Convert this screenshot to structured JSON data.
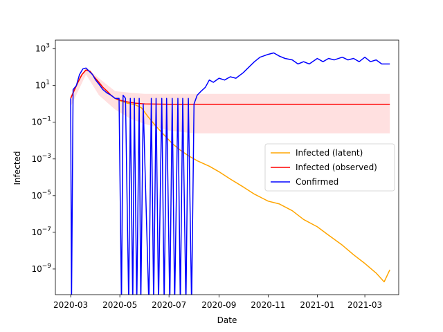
{
  "chart_data": {
    "type": "line",
    "title": "",
    "xlabel": "Date",
    "ylabel": "Infected",
    "yscale": "log",
    "ylim": [
      4e-11,
      3000
    ],
    "xlim": [
      "2020-02-11",
      "2021-04-12"
    ],
    "grid": false,
    "legend_position": "center-right",
    "x_ticks": [
      "2020-03",
      "2020-05",
      "2020-07",
      "2020-09",
      "2020-11",
      "2021-01",
      "2021-03"
    ],
    "y_ticks": [
      {
        "value": 1e-09,
        "base": "10",
        "exp": "−9"
      },
      {
        "value": 1e-07,
        "base": "10",
        "exp": "−7"
      },
      {
        "value": 1e-05,
        "base": "10",
        "exp": "−5"
      },
      {
        "value": 0.001,
        "base": "10",
        "exp": "−3"
      },
      {
        "value": 0.1,
        "base": "10",
        "exp": "−1"
      },
      {
        "value": 10,
        "base": "10",
        "exp": "1"
      },
      {
        "value": 1000,
        "base": "10",
        "exp": "3"
      }
    ],
    "series": [
      {
        "name": "Infected (latent)",
        "color": "#ffa500",
        "points": [
          [
            "2020-03-01",
            2
          ],
          [
            "2020-03-05",
            5
          ],
          [
            "2020-03-10",
            15
          ],
          [
            "2020-03-15",
            40
          ],
          [
            "2020-03-20",
            70
          ],
          [
            "2020-03-25",
            60
          ],
          [
            "2020-03-30",
            30
          ],
          [
            "2020-04-05",
            15
          ],
          [
            "2020-04-10",
            8
          ],
          [
            "2020-04-15",
            5
          ],
          [
            "2020-04-20",
            3
          ],
          [
            "2020-04-25",
            2
          ],
          [
            "2020-05-01",
            1.5
          ],
          [
            "2020-05-10",
            1.1
          ],
          [
            "2020-05-20",
            0.9
          ],
          [
            "2020-05-28",
            0.6
          ],
          [
            "2020-06-05",
            0.2
          ],
          [
            "2020-06-15",
            0.06
          ],
          [
            "2020-06-25",
            0.02
          ],
          [
            "2020-07-05",
            0.007
          ],
          [
            "2020-07-15",
            0.003
          ],
          [
            "2020-07-25",
            0.0015
          ],
          [
            "2020-08-05",
            0.0008
          ],
          [
            "2020-08-20",
            0.0004
          ],
          [
            "2020-09-01",
            0.0002
          ],
          [
            "2020-09-15",
            8e-05
          ],
          [
            "2020-10-01",
            3e-05
          ],
          [
            "2020-10-15",
            1.2e-05
          ],
          [
            "2020-11-01",
            5e-06
          ],
          [
            "2020-11-15",
            3.5e-06
          ],
          [
            "2020-12-01",
            1.5e-06
          ],
          [
            "2020-12-15",
            5e-07
          ],
          [
            "2021-01-01",
            2e-07
          ],
          [
            "2021-01-15",
            7e-08
          ],
          [
            "2021-02-01",
            2e-08
          ],
          [
            "2021-02-15",
            6e-09
          ],
          [
            "2021-03-01",
            2e-09
          ],
          [
            "2021-03-15",
            6e-10
          ],
          [
            "2021-03-25",
            2e-10
          ],
          [
            "2021-04-01",
            9e-10
          ]
        ]
      },
      {
        "name": "Infected (observed)",
        "color": "#ff0000",
        "points": [
          [
            "2020-03-01",
            2
          ],
          [
            "2020-03-05",
            5
          ],
          [
            "2020-03-10",
            15
          ],
          [
            "2020-03-15",
            40
          ],
          [
            "2020-03-20",
            70
          ],
          [
            "2020-03-25",
            60
          ],
          [
            "2020-03-30",
            30
          ],
          [
            "2020-04-05",
            15
          ],
          [
            "2020-04-10",
            8
          ],
          [
            "2020-04-15",
            5
          ],
          [
            "2020-04-20",
            3
          ],
          [
            "2020-04-25",
            2
          ],
          [
            "2020-05-01",
            1.6
          ],
          [
            "2020-05-10",
            1.3
          ],
          [
            "2020-05-20",
            1.1
          ],
          [
            "2020-06-01",
            1.0
          ],
          [
            "2020-07-01",
            0.95
          ],
          [
            "2020-08-01",
            0.95
          ],
          [
            "2020-09-01",
            0.95
          ],
          [
            "2020-10-01",
            0.95
          ],
          [
            "2020-11-01",
            0.95
          ],
          [
            "2020-12-01",
            0.95
          ],
          [
            "2021-01-01",
            0.95
          ],
          [
            "2021-02-01",
            0.95
          ],
          [
            "2021-03-01",
            0.95
          ],
          [
            "2021-04-01",
            0.95
          ]
        ]
      },
      {
        "name": "Confirmed",
        "color": "#0000ff",
        "points": [
          [
            "2020-03-01",
            2
          ],
          [
            "2020-03-02",
            1e-11
          ],
          [
            "2020-03-04",
            6
          ],
          [
            "2020-03-08",
            10
          ],
          [
            "2020-03-12",
            40
          ],
          [
            "2020-03-16",
            80
          ],
          [
            "2020-03-20",
            90
          ],
          [
            "2020-03-24",
            60
          ],
          [
            "2020-03-28",
            40
          ],
          [
            "2020-04-01",
            20
          ],
          [
            "2020-04-05",
            12
          ],
          [
            "2020-04-10",
            6
          ],
          [
            "2020-04-15",
            4
          ],
          [
            "2020-04-20",
            3
          ],
          [
            "2020-04-25",
            2
          ],
          [
            "2020-04-30",
            2
          ],
          [
            "2020-05-03",
            1e-11
          ],
          [
            "2020-05-05",
            3
          ],
          [
            "2020-05-08",
            2
          ],
          [
            "2020-05-12",
            1e-11
          ],
          [
            "2020-05-14",
            2
          ],
          [
            "2020-05-17",
            1e-11
          ],
          [
            "2020-05-19",
            2
          ],
          [
            "2020-05-22",
            1e-11
          ],
          [
            "2020-05-25",
            2
          ],
          [
            "2020-05-27",
            1e-11
          ],
          [
            "2020-05-30",
            1
          ],
          [
            "2020-06-06",
            1e-11
          ],
          [
            "2020-06-09",
            2
          ],
          [
            "2020-06-12",
            1e-11
          ],
          [
            "2020-06-15",
            2
          ],
          [
            "2020-06-18",
            1e-11
          ],
          [
            "2020-06-22",
            2
          ],
          [
            "2020-06-25",
            1e-11
          ],
          [
            "2020-06-28",
            2
          ],
          [
            "2020-07-02",
            1e-11
          ],
          [
            "2020-07-05",
            2
          ],
          [
            "2020-07-08",
            1e-11
          ],
          [
            "2020-07-12",
            2
          ],
          [
            "2020-07-15",
            1e-11
          ],
          [
            "2020-07-18",
            2
          ],
          [
            "2020-07-22",
            1e-11
          ],
          [
            "2020-07-25",
            2
          ],
          [
            "2020-07-29",
            1e-11
          ],
          [
            "2020-08-01",
            1
          ],
          [
            "2020-08-05",
            3
          ],
          [
            "2020-08-10",
            5
          ],
          [
            "2020-08-15",
            8
          ],
          [
            "2020-08-20",
            20
          ],
          [
            "2020-08-25",
            15
          ],
          [
            "2020-09-01",
            25
          ],
          [
            "2020-09-08",
            20
          ],
          [
            "2020-09-15",
            30
          ],
          [
            "2020-09-22",
            25
          ],
          [
            "2020-10-01",
            50
          ],
          [
            "2020-10-08",
            100
          ],
          [
            "2020-10-15",
            200
          ],
          [
            "2020-10-22",
            350
          ],
          [
            "2020-11-01",
            500
          ],
          [
            "2020-11-08",
            600
          ],
          [
            "2020-11-15",
            400
          ],
          [
            "2020-11-22",
            300
          ],
          [
            "2020-12-01",
            250
          ],
          [
            "2020-12-08",
            150
          ],
          [
            "2020-12-15",
            200
          ],
          [
            "2020-12-22",
            150
          ],
          [
            "2021-01-01",
            300
          ],
          [
            "2021-01-08",
            200
          ],
          [
            "2021-01-15",
            300
          ],
          [
            "2021-01-22",
            250
          ],
          [
            "2021-02-01",
            350
          ],
          [
            "2021-02-08",
            250
          ],
          [
            "2021-02-15",
            300
          ],
          [
            "2021-02-22",
            200
          ],
          [
            "2021-03-01",
            350
          ],
          [
            "2021-03-08",
            200
          ],
          [
            "2021-03-15",
            250
          ],
          [
            "2021-03-22",
            150
          ],
          [
            "2021-04-01",
            150
          ]
        ]
      }
    ],
    "band": {
      "color": "#ffcccc",
      "points": [
        [
          "2020-03-01",
          0.7,
          3
        ],
        [
          "2020-03-20",
          40,
          100
        ],
        [
          "2020-04-05",
          3,
          25
        ],
        [
          "2020-04-25",
          0.5,
          5
        ],
        [
          "2020-05-15",
          0.15,
          4
        ],
        [
          "2020-06-01",
          0.08,
          3.5
        ],
        [
          "2020-07-01",
          0.035,
          3.5
        ],
        [
          "2020-08-01",
          0.025,
          3.5
        ],
        [
          "2020-09-01",
          0.025,
          3.5
        ],
        [
          "2020-11-01",
          0.025,
          3.5
        ],
        [
          "2021-01-01",
          0.025,
          3.5
        ],
        [
          "2021-04-01",
          0.025,
          3.5
        ]
      ]
    }
  }
}
